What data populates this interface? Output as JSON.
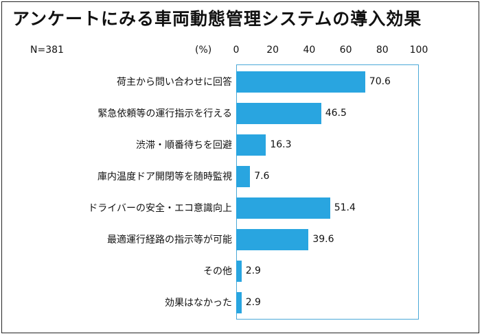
{
  "header": {
    "title": "アンケートにみる車両動態管理システムの導入効果"
  },
  "chart_data": {
    "type": "bar",
    "orientation": "horizontal",
    "title": "アンケートにみる車両動態管理システムの導入効果",
    "sample_note": "N=381",
    "unit": "(%)",
    "xlim": [
      0,
      100
    ],
    "ticks": [
      "0",
      "20",
      "40",
      "60",
      "80",
      "100"
    ],
    "grid": false,
    "categories": [
      "荷主から問い合わせに回答",
      "緊急依頼等の運行指示を行える",
      "渋滞・順番待ちを回避",
      "庫内温度ドア開閉等を随時監視",
      "ドライバーの安全・エコ意識向上",
      "最適運行経路の指示等が可能",
      "その他",
      "効果はなかった"
    ],
    "values": [
      70.6,
      46.5,
      16.3,
      7.6,
      51.4,
      39.6,
      2.9,
      2.9
    ],
    "value_labels": [
      "70.6",
      "46.5",
      "16.3",
      "7.6",
      "51.4",
      "39.6",
      "2.9",
      "2.9"
    ],
    "bar_color": "#29a5e0",
    "frame_color": "#4aa8d8"
  }
}
